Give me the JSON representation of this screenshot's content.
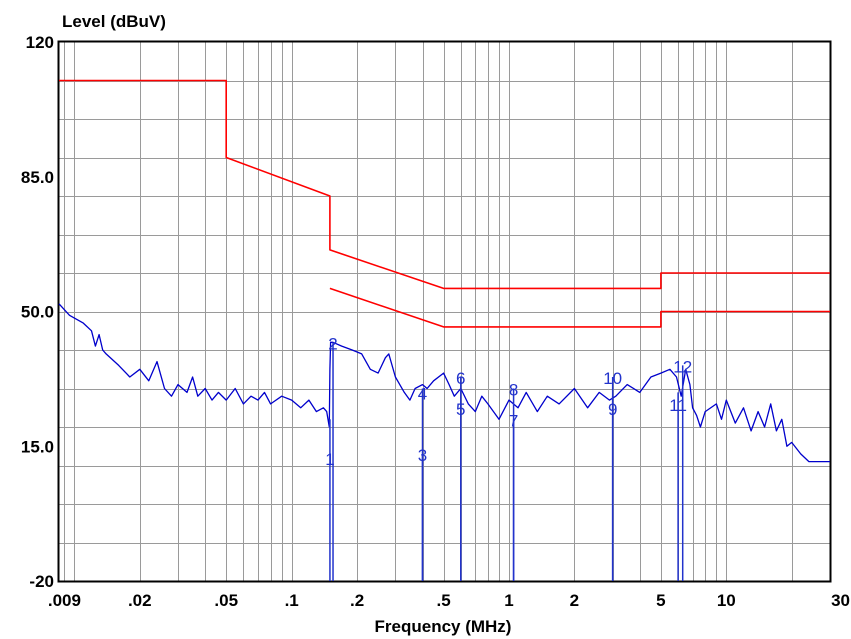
{
  "chart_data": {
    "type": "line",
    "title": "",
    "ylabel": "Level (dBuV)",
    "xlabel": "Frequency (MHz)",
    "x_scale": "log",
    "xlim": [
      0.0085,
      30
    ],
    "ylim": [
      -20,
      120
    ],
    "y_ticks": [
      {
        "value": 120,
        "label": "120"
      },
      {
        "value": 85,
        "label": "85.0"
      },
      {
        "value": 50,
        "label": "50.0"
      },
      {
        "value": 15,
        "label": "15.0"
      },
      {
        "value": -20,
        "label": "-20"
      }
    ],
    "x_ticks": [
      {
        "value": 0.009,
        "label": ".009"
      },
      {
        "value": 0.02,
        "label": ".02"
      },
      {
        "value": 0.05,
        "label": ".05"
      },
      {
        "value": 0.1,
        "label": ".1"
      },
      {
        "value": 0.2,
        "label": ".2"
      },
      {
        "value": 0.5,
        "label": ".5"
      },
      {
        "value": 1,
        "label": "1"
      },
      {
        "value": 2,
        "label": "2"
      },
      {
        "value": 5,
        "label": "5"
      },
      {
        "value": 10,
        "label": "10"
      },
      {
        "value": 30,
        "label": "30"
      }
    ],
    "grid": true,
    "series": [
      {
        "color": "#ff0000",
        "x": [
          0.0085,
          0.05,
          0.05,
          0.15,
          0.15,
          0.5,
          5,
          5,
          30
        ],
        "y": [
          110,
          110,
          90,
          80,
          66,
          56,
          56,
          60,
          60
        ]
      },
      {
        "color": "#ff0000",
        "x": [
          0.15,
          0.5,
          5,
          5,
          30
        ],
        "y": [
          56,
          46,
          46,
          50,
          50
        ]
      },
      {
        "color": "#0000cc",
        "x": [
          0.0085,
          0.0095,
          0.011,
          0.012,
          0.0125,
          0.013,
          0.0135,
          0.014,
          0.016,
          0.018,
          0.02,
          0.022,
          0.024,
          0.026,
          0.028,
          0.03,
          0.033,
          0.035,
          0.037,
          0.04,
          0.043,
          0.046,
          0.05,
          0.055,
          0.06,
          0.065,
          0.07,
          0.075,
          0.08,
          0.09,
          0.1,
          0.11,
          0.12,
          0.13,
          0.14,
          0.145,
          0.149,
          0.15,
          0.151,
          0.155,
          0.17,
          0.19,
          0.21,
          0.23,
          0.25,
          0.27,
          0.28,
          0.3,
          0.33,
          0.35,
          0.37,
          0.4,
          0.42,
          0.45,
          0.5,
          0.53,
          0.56,
          0.6,
          0.65,
          0.7,
          0.75,
          0.8,
          0.9,
          1.0,
          1.1,
          1.2,
          1.35,
          1.5,
          1.7,
          2.0,
          2.3,
          2.6,
          2.9,
          3.1,
          3.5,
          4.0,
          4.5,
          5.0,
          5.5,
          5.9,
          6.2,
          6.5,
          6.8,
          7.0,
          7.3,
          7.6,
          8.0,
          9.0,
          9.5,
          10.0,
          11.0,
          12.0,
          13.0,
          14.0,
          15.0,
          16.0,
          17.0,
          18.0,
          19.0,
          20.0,
          22.0,
          24.0,
          26.0,
          28.0,
          30.0
        ],
        "y": [
          52,
          49,
          47,
          45,
          41,
          44,
          40,
          39,
          36,
          33,
          35,
          32,
          37,
          30,
          28,
          31,
          29,
          33,
          28,
          30,
          27,
          29,
          27,
          30,
          26,
          28,
          27,
          29,
          26,
          28,
          27,
          25,
          27,
          24,
          25,
          24,
          20,
          35,
          42,
          42,
          41,
          40,
          39,
          35,
          34,
          38,
          39,
          33,
          29,
          27,
          30,
          31,
          30,
          32,
          34,
          31,
          28,
          30,
          26,
          24,
          28,
          26,
          22,
          27,
          25,
          29,
          24,
          28,
          26,
          30,
          25,
          29,
          27,
          28,
          31,
          29,
          33,
          34,
          35,
          33,
          28,
          35,
          31,
          25,
          23,
          20,
          24,
          26,
          22,
          27,
          21,
          25,
          19,
          24,
          20,
          26,
          19,
          22,
          15,
          16,
          13,
          11,
          11,
          11,
          11
        ]
      }
    ],
    "markers": [
      {
        "label": "1",
        "x": 0.15,
        "y": 22,
        "label_y": 12
      },
      {
        "label": "2",
        "x": 0.155,
        "y": 42,
        "label_y": 42
      },
      {
        "label": "3",
        "x": 0.4,
        "y": 13,
        "label_y": 13
      },
      {
        "label": "4",
        "x": 0.4,
        "y": 30,
        "label_y": 29
      },
      {
        "label": "5",
        "x": 0.6,
        "y": 28,
        "label_y": 25
      },
      {
        "label": "6",
        "x": 0.6,
        "y": 33,
        "label_y": 33
      },
      {
        "label": "7",
        "x": 1.05,
        "y": 22,
        "label_y": 22
      },
      {
        "label": "8",
        "x": 1.05,
        "y": 30,
        "label_y": 30
      },
      {
        "label": "9",
        "x": 3.0,
        "y": 28,
        "label_y": 25
      },
      {
        "label": "10",
        "x": 3.0,
        "y": 33,
        "label_y": 33
      },
      {
        "label": "11",
        "x": 6.0,
        "y": 29,
        "label_y": 26
      },
      {
        "label": "12",
        "x": 6.3,
        "y": 36,
        "label_y": 36
      }
    ]
  }
}
